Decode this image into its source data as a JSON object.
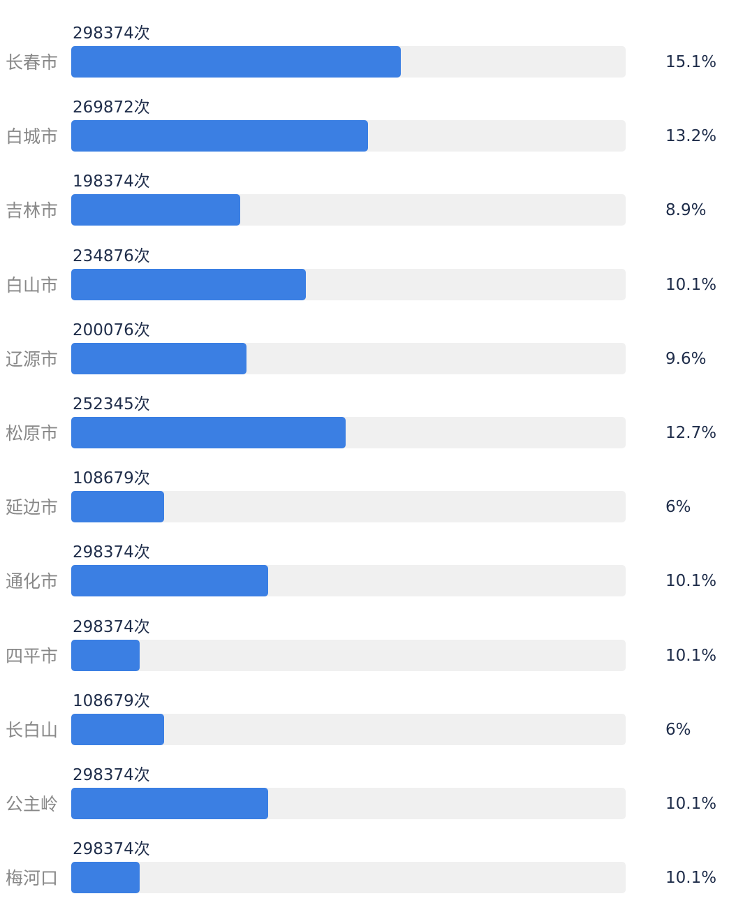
{
  "chart_data": {
    "type": "bar",
    "orientation": "horizontal",
    "categories": [
      "长春市",
      "白城市",
      "吉林市",
      "白山市",
      "辽源市",
      "松原市",
      "延边市",
      "通化市",
      "四平市",
      "长白山",
      "公主岭",
      "梅河口"
    ],
    "counts": [
      "298374次",
      "269872次",
      "198374次",
      "234876次",
      "200076次",
      "252345次",
      "108679次",
      "298374次",
      "298374次",
      "108679次",
      "298374次",
      "298374次"
    ],
    "values": [
      59.4,
      53.5,
      30.5,
      42.3,
      31.6,
      49.5,
      16.7,
      35.5,
      12.3,
      16.7,
      35.5,
      12.3
    ],
    "percent_labels": [
      "15.1%",
      "13.2%",
      "8.9%",
      "10.1%",
      "9.6%",
      "12.7%",
      "6%",
      "10.1%",
      "10.1%",
      "6%",
      "10.1%",
      "10.1%"
    ],
    "xlim": [
      0,
      100
    ],
    "bar_color": "#3b7fe3",
    "track_color": "#f0f0f0"
  }
}
